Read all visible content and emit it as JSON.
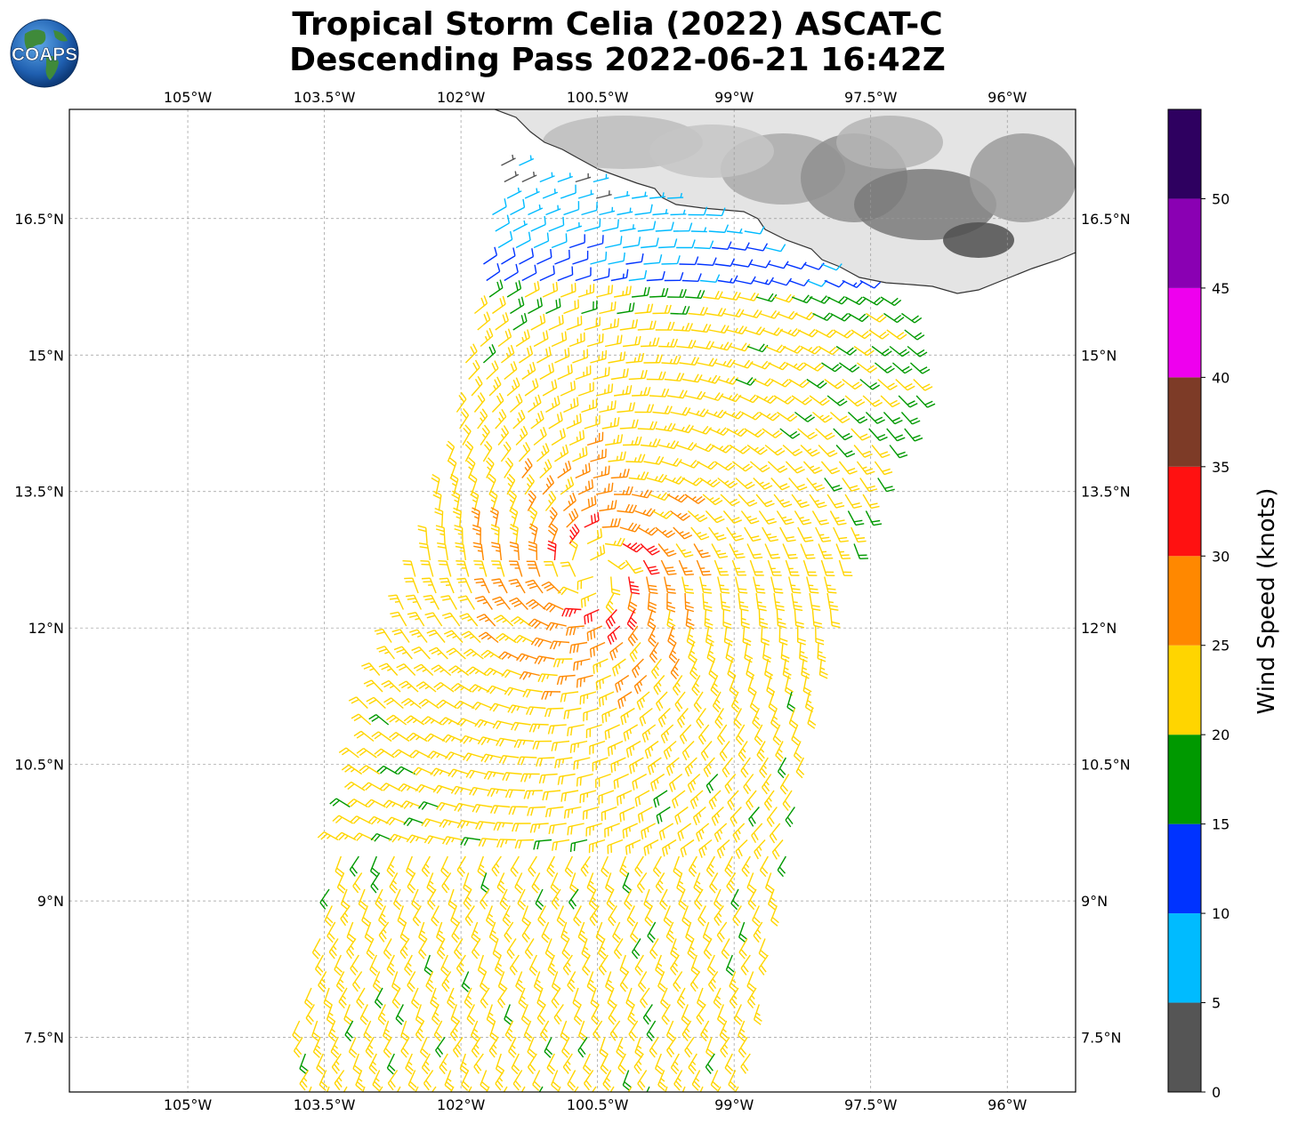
{
  "title": {
    "line1": "Tropical Storm Celia (2022) ASCAT-C",
    "line2": "Descending Pass 2022-06-21 16:42Z"
  },
  "logo": {
    "text": "COAPS",
    "icon": "globe-icon"
  },
  "map": {
    "lon_range": [
      -106.3,
      -95.25
    ],
    "lat_range": [
      6.9,
      17.7
    ],
    "lon_ticks": [
      -105,
      -103.5,
      -102,
      -100.5,
      -99,
      -97.5,
      -96
    ],
    "lon_tick_labels": [
      "105°W",
      "103.5°W",
      "102°W",
      "100.5°W",
      "99°W",
      "97.5°W",
      "96°W"
    ],
    "lat_ticks": [
      7.5,
      9,
      10.5,
      12,
      13.5,
      15,
      16.5
    ],
    "lat_tick_labels": [
      "7.5°N",
      "9°N",
      "10.5°N",
      "12°N",
      "13.5°N",
      "15°N",
      "16.5°N"
    ],
    "grid": true,
    "storm_center": {
      "lon": -100.55,
      "lat": 12.6
    },
    "land_colors": [
      "#ffffff",
      "#d8d8d8",
      "#9a9a9a",
      "#555555"
    ]
  },
  "colorbar": {
    "label": "Wind Speed (knots)",
    "ticks": [
      0,
      5,
      10,
      15,
      20,
      25,
      30,
      35,
      40,
      45,
      50
    ],
    "bins": [
      {
        "min": 0,
        "max": 5,
        "color": "#555555"
      },
      {
        "min": 5,
        "max": 10,
        "color": "#00bbff"
      },
      {
        "min": 10,
        "max": 15,
        "color": "#0033ff"
      },
      {
        "min": 15,
        "max": 20,
        "color": "#009900"
      },
      {
        "min": 20,
        "max": 25,
        "color": "#ffd500"
      },
      {
        "min": 25,
        "max": 30,
        "color": "#ff8800"
      },
      {
        "min": 30,
        "max": 35,
        "color": "#ff1111"
      },
      {
        "min": 35,
        "max": 40,
        "color": "#7d3b27"
      },
      {
        "min": 40,
        "max": 45,
        "color": "#ee00ee"
      },
      {
        "min": 45,
        "max": 50,
        "color": "#8a00b3"
      },
      {
        "min": 50,
        "max": 55,
        "color": "#2e0060"
      }
    ]
  }
}
